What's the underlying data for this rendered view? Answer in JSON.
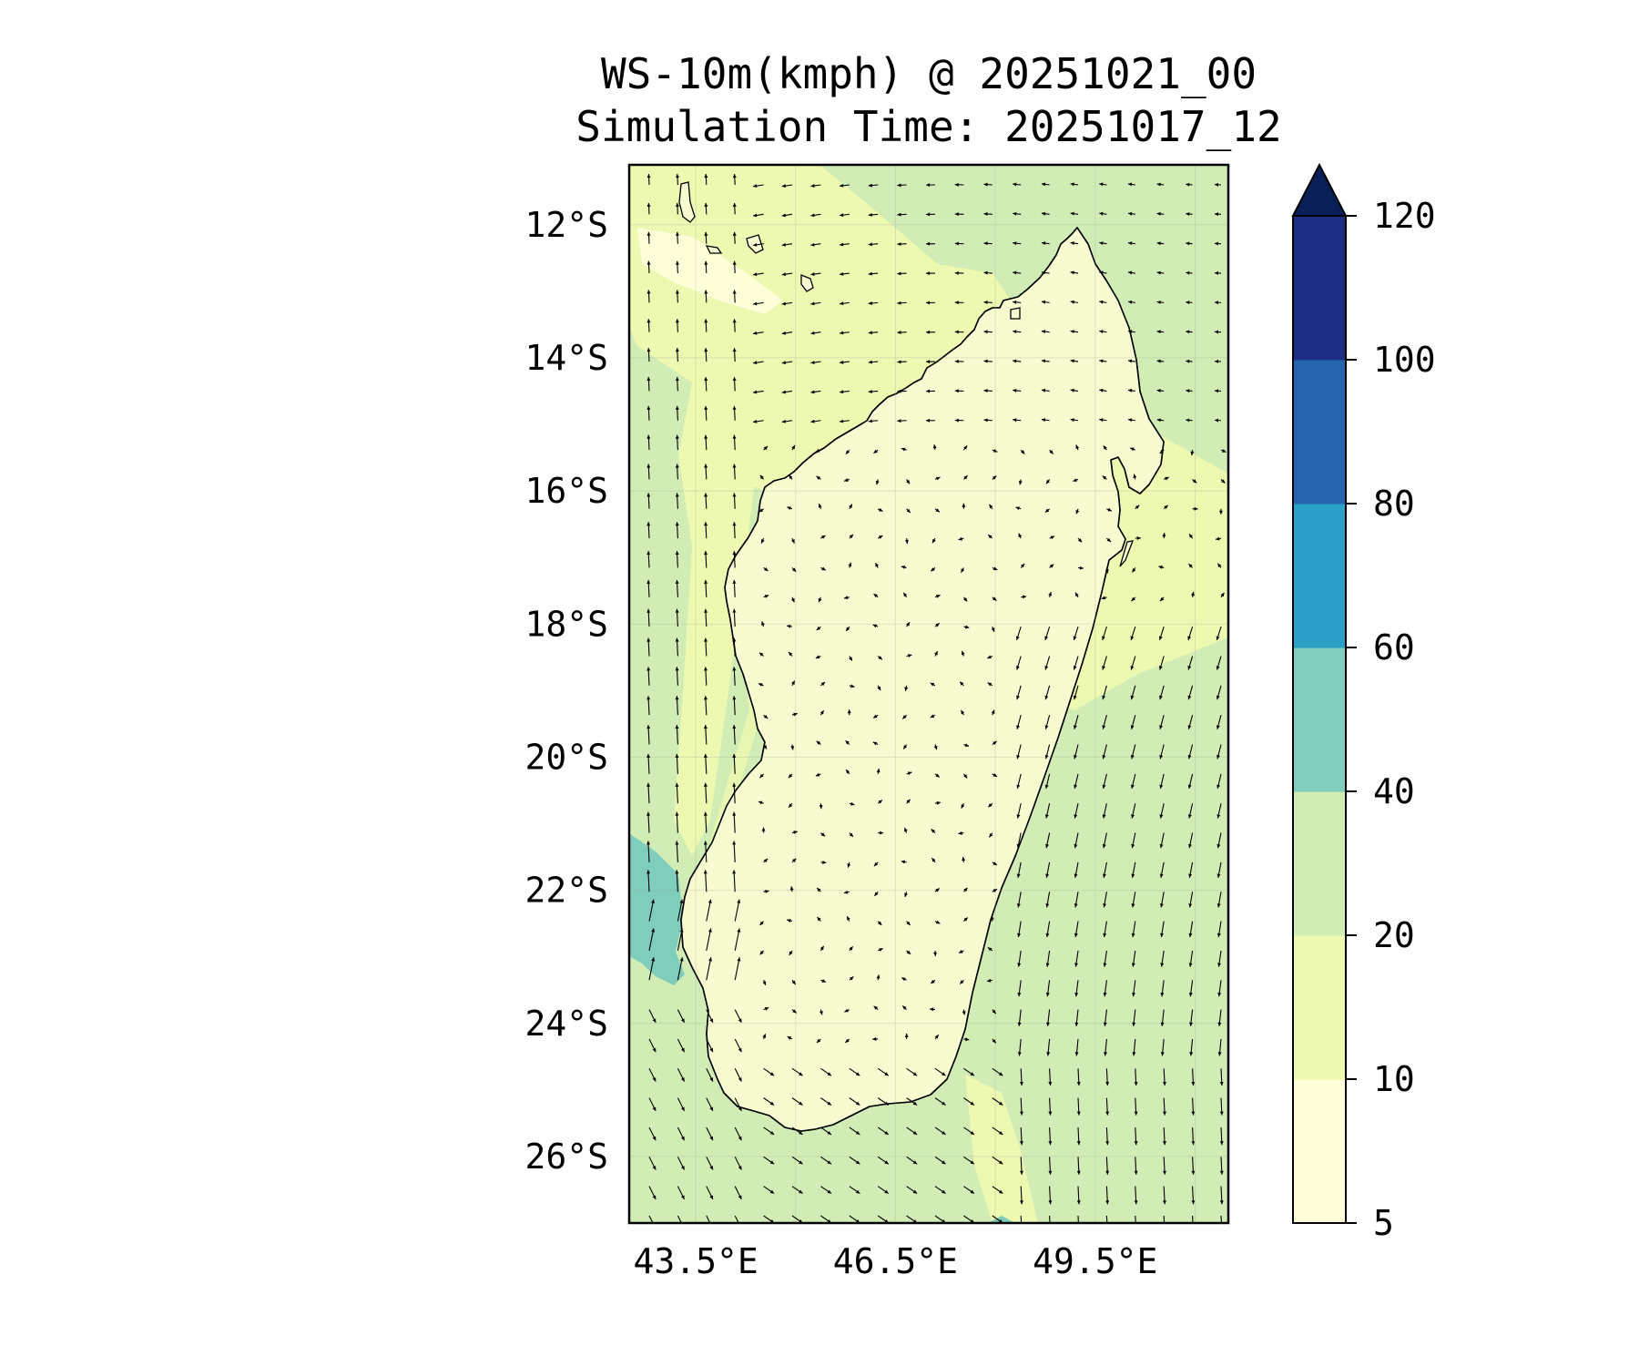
{
  "title": {
    "line1": "WS-10m(kmph) @ 20251021_00",
    "line2": "Simulation Time: 20251017_12"
  },
  "map": {
    "region": "Madagascar",
    "lat_labels": [
      "12°S",
      "14°S",
      "16°S",
      "18°S",
      "20°S",
      "22°S",
      "24°S",
      "26°S"
    ],
    "lon_labels": [
      "43.5°E",
      "46.5°E",
      "49.5°E"
    ],
    "lat_range": [
      -27.0,
      -11.1
    ],
    "lon_range": [
      42.5,
      51.5
    ]
  },
  "colorbar": {
    "levels": [
      5,
      10,
      20,
      40,
      60,
      80,
      100,
      120
    ],
    "tick_labels": [
      "5",
      "10",
      "20",
      "40",
      "60",
      "80",
      "100",
      "120"
    ],
    "colors": [
      "#feffd9",
      "#edf8b1",
      "#d1edb5",
      "#7fcdbb",
      "#2ba0c6",
      "#2565ad",
      "#1d2e83",
      "#0a1f55"
    ],
    "extend": "max"
  }
}
